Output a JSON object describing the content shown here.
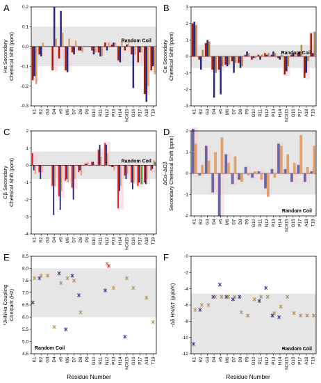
{
  "colors": {
    "navy": "#2b2a7a",
    "slate": "#6a6aa0",
    "tan": "#b08a50",
    "peach": "#e0a070",
    "red": "#d02820",
    "darkred": "#a02010",
    "green": "#3a8a3a",
    "pink": "#f8d0d8",
    "gray": "#e6e6e6"
  },
  "residues": [
    "K1",
    "R2",
    "G3",
    "D4",
    "e5",
    "M6",
    "D7",
    "D8",
    "P9",
    "G10",
    "R11",
    "N12",
    "P13",
    "H14",
    "hCit15",
    "G16",
    "P17",
    "A18",
    "T19"
  ],
  "xlabel": "Residue Number",
  "random_coil": "Random Coil",
  "chart_data": [
    {
      "id": "A",
      "type": "bar",
      "label": "A",
      "ylabel": [
        "Hα Secondary",
        "Chemical Shift (ppm)"
      ],
      "ylim": [
        -0.3,
        0.2
      ],
      "yticks": [
        -0.3,
        -0.2,
        -0.1,
        0.0,
        0.1,
        0.2
      ],
      "ytick_labels": [
        "-0.3",
        "-0.2",
        "-0.1",
        "0.0",
        "0.1",
        "0.2"
      ],
      "band": [
        -0.1,
        0.1
      ],
      "rc_label_pos": "right",
      "series": [
        {
          "color": "darkred",
          "values": [
            -0.17,
            -0.04,
            null,
            -0.12,
            -0.06,
            -0.12,
            -0.03,
            -0.02,
            null,
            -0.02,
            -0.03,
            0.02,
            0.01,
            -0.07,
            -0.02,
            -0.04,
            -0.08,
            -0.24,
            -0.12
          ]
        },
        {
          "color": "navy",
          "values": [
            -0.15,
            -0.05,
            null,
            0.2,
            0.18,
            -0.13,
            -0.04,
            -0.02,
            null,
            -0.04,
            -0.05,
            -0.02,
            0.02,
            -0.08,
            0.01,
            -0.21,
            -0.03,
            -0.28,
            -0.1
          ]
        },
        {
          "color": "peach",
          "values": [
            -0.19,
            0.02,
            null,
            0.04,
            0.07,
            0.04,
            0.03,
            -0.03,
            null,
            -0.03,
            -0.05,
            0.02,
            0.02,
            0.03,
            0.02,
            -0.04,
            -0.03,
            -0.2,
            -0.14
          ]
        }
      ]
    },
    {
      "id": "B",
      "type": "bar",
      "label": "B",
      "ylabel": [
        "Cα Secondary",
        "Chemical Shift (ppm)"
      ],
      "ylim": [
        -3,
        3
      ],
      "yticks": [
        -3,
        -2,
        -1,
        0,
        1,
        2,
        3
      ],
      "ytick_labels": [
        "-3",
        "-2",
        "-1",
        "0",
        "1",
        "2",
        "3"
      ],
      "band": [
        -0.7,
        0.7
      ],
      "rc_label_pos": "right",
      "series": [
        {
          "color": "darkred",
          "values": [
            2.0,
            -0.2,
            0.8,
            -0.8,
            -0.8,
            -0.5,
            -0.3,
            -0.4,
            0.1,
            -0.2,
            0.1,
            0.2,
            0.1,
            -0.1,
            -1.1,
            0.1,
            0.2,
            -1.3,
            1.4
          ]
        },
        {
          "color": "navy",
          "values": [
            2.1,
            -0.8,
            1.0,
            -2.5,
            -2.3,
            -0.6,
            -1.0,
            -0.7,
            0.3,
            -0.1,
            -0.2,
            0.1,
            0.3,
            -0.2,
            -0.9,
            0.2,
            0.3,
            -1.0,
            0.2
          ]
        },
        {
          "color": "tan",
          "values": [
            1.9,
            0.4,
            0.9,
            -1.0,
            -0.6,
            -0.5,
            -0.4,
            -0.6,
            0.2,
            -0.1,
            0.1,
            0.2,
            0.2,
            0.1,
            -0.6,
            0.2,
            0.7,
            -0.3,
            1.5
          ]
        }
      ]
    },
    {
      "id": "C",
      "type": "bar",
      "label": "C",
      "ylabel": [
        "Cβ Secondary",
        "Chemical Shift (ppm)"
      ],
      "ylim": [
        -4,
        2
      ],
      "yticks": [
        -4,
        -3,
        -2,
        -1,
        0,
        1,
        2
      ],
      "ytick_labels": [
        "-4",
        "-3",
        "-2",
        "-1",
        "0",
        "1",
        "2"
      ],
      "band": [
        -0.8,
        0.8
      ],
      "rc_label_pos": "right",
      "series": [
        {
          "color": "red",
          "values": [
            0.7,
            -0.4,
            null,
            -1.2,
            -1.8,
            -0.9,
            -1.3,
            -0.4,
            0.1,
            0.2,
            0.9,
            1.3,
            -0.1,
            -2.5,
            -0.6,
            -1.0,
            -1.2,
            -1.0,
            -0.3
          ]
        },
        {
          "color": "navy",
          "values": [
            -0.3,
            -0.8,
            null,
            -2.9,
            -2.6,
            -0.8,
            -2.0,
            -0.3,
            0.1,
            0.2,
            1.2,
            1.2,
            -0.1,
            -1.5,
            -0.8,
            -1.4,
            -1.0,
            -1.1,
            -0.2
          ]
        },
        {
          "color": "peach",
          "values": [
            -0.5,
            -0.4,
            null,
            -1.2,
            -1.5,
            -1.0,
            -0.8,
            -0.6,
            0.2,
            0.1,
            0.5,
            0.7,
            -0.3,
            -1.2,
            -0.5,
            -1.0,
            -1.1,
            -0.8,
            0.3
          ]
        },
        {
          "color": "green",
          "values": [
            null,
            null,
            null,
            null,
            null,
            null,
            null,
            null,
            null,
            null,
            null,
            null,
            null,
            null,
            null,
            null,
            -1.1,
            null,
            0.2
          ]
        }
      ]
    },
    {
      "id": "D",
      "type": "bar",
      "label": "D",
      "ylabel": [
        "ΔCα–ΔCβ",
        "Secondary Chemical Shift (ppm)"
      ],
      "ylim": [
        -2,
        2
      ],
      "yticks": [
        -2,
        -1,
        0,
        1,
        2
      ],
      "ytick_labels": [
        "-2",
        "-1",
        "0",
        "1",
        "2"
      ],
      "band": [
        -1.0,
        2.0
      ],
      "rc_label_pos": "bottom-right",
      "series": [
        {
          "color": "slate",
          "values": [
            2.1,
            -0.1,
            1.3,
            -0.9,
            -2.0,
            0.9,
            -0.5,
            -0.3,
            0.3,
            -0.2,
            0.1,
            -0.7,
            0.2,
            1.4,
            0.2,
            -0.4,
            0.4,
            -0.4,
            0.1
          ]
        },
        {
          "color": "peach",
          "values": [
            1.4,
            0.4,
            0.6,
            1.0,
            1.7,
            0.5,
            0.8,
            -0.4,
            -0.1,
            0.1,
            -0.3,
            -1.1,
            -0.2,
            1.3,
            0.9,
            0.5,
            1.8,
            0.3,
            1.3
          ]
        }
      ]
    },
    {
      "id": "E",
      "type": "scatter",
      "label": "E",
      "ylabel": [
        "³JHNHα Coupling",
        "Constant (Hz)"
      ],
      "ylim": [
        4.5,
        8.5
      ],
      "yticks": [
        4.5,
        5.0,
        5.5,
        6.0,
        6.5,
        7.0,
        7.5,
        8.0,
        8.5
      ],
      "ytick_labels": [
        "4.5",
        "5.0",
        "5.5",
        "6.0",
        "6.5",
        "7.0",
        "7.5",
        "8.0",
        "8.5"
      ],
      "band": [
        6.0,
        8.0
      ],
      "rc_label_pos": "bottom-left",
      "series": [
        {
          "color": "navy",
          "marker": "x",
          "values": [
            6.6,
            7.6,
            null,
            null,
            7.8,
            5.5,
            7.7,
            6.9,
            null,
            null,
            null,
            7.1,
            null,
            null,
            5.2,
            null,
            null,
            null,
            null
          ]
        },
        {
          "color": "tan",
          "marker": "x",
          "values": [
            7.6,
            7.7,
            7.7,
            5.6,
            7.4,
            7.6,
            7.5,
            6.2,
            null,
            null,
            null,
            8.2,
            7.2,
            null,
            7.6,
            7.2,
            null,
            6.8,
            5.8
          ]
        },
        {
          "color": "red",
          "marker": "x",
          "values": [
            null,
            null,
            null,
            null,
            null,
            null,
            null,
            null,
            null,
            null,
            null,
            8.1,
            null,
            null,
            null,
            null,
            null,
            null,
            null
          ]
        }
      ]
    },
    {
      "id": "F",
      "type": "scatter",
      "label": "F",
      "ylabel": [
        "-Δδ HN/ΔT (ppb/K)"
      ],
      "ylim": [
        -12,
        0
      ],
      "yticks": [
        -12,
        -10,
        -8,
        -6,
        -4,
        -2,
        0
      ],
      "ytick_labels": [
        "-12",
        "-10",
        "-8",
        "-6",
        "-4",
        "-2",
        "0"
      ],
      "band": [
        -12,
        -4.6
      ],
      "rc_label_pos": "bottom-right",
      "series": [
        {
          "color": "navy",
          "marker": "x",
          "values": [
            -10.8,
            -6.6,
            null,
            -5.0,
            -3.5,
            -5.0,
            -5.3,
            -5.0,
            null,
            null,
            -5.5,
            -3.9,
            -7.3,
            -7.5,
            null,
            null,
            null,
            null,
            null
          ]
        },
        {
          "color": "tan",
          "marker": "x",
          "values": [
            -6.6,
            -6.0,
            -6.0,
            -5.0,
            -5.0,
            -5.0,
            -5.0,
            -6.9,
            -7.3,
            -5.3,
            -5.0,
            -5.0,
            -7.0,
            -6.2,
            -5.0,
            -7.0,
            -7.3,
            -7.3,
            -7.3
          ]
        }
      ]
    }
  ]
}
